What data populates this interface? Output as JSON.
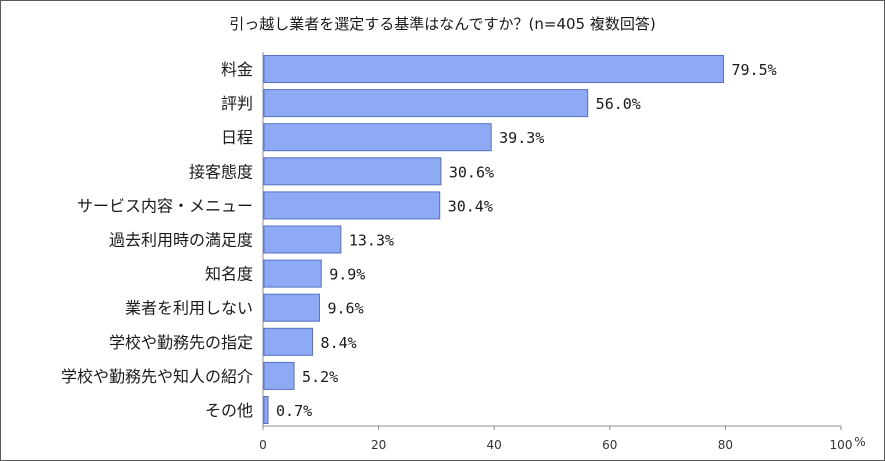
{
  "chart_data": {
    "type": "bar",
    "orientation": "horizontal",
    "title": "引っ越し業者を選定する基準はなんですか？(n=405 複数回答)",
    "categories": [
      "料金",
      "評判",
      "日程",
      "接客態度",
      "サービス内容・メニュー",
      "過去利用時の満足度",
      "知名度",
      "業者を利用しない",
      "学校や勤務先の指定",
      "学校や勤務先や知人の紹介",
      "その他"
    ],
    "values": [
      79.5,
      56.0,
      39.3,
      30.6,
      30.4,
      13.3,
      9.9,
      9.6,
      8.4,
      5.2,
      0.7
    ],
    "value_labels": [
      "79.5%",
      "56.0%",
      "39.3%",
      "30.6%",
      "30.4%",
      "13.3%",
      "9.9%",
      "9.6%",
      "8.4%",
      "5.2%",
      "0.7%"
    ],
    "xlim": [
      0,
      100
    ],
    "xticks": [
      "0",
      "20",
      "40",
      "60",
      "80",
      "100"
    ],
    "xunit": "%",
    "grid": false,
    "colors": {
      "bar_fill": "#8faaf5",
      "bar_stroke": "#5470c4",
      "axis": "#8c8c8c"
    }
  }
}
